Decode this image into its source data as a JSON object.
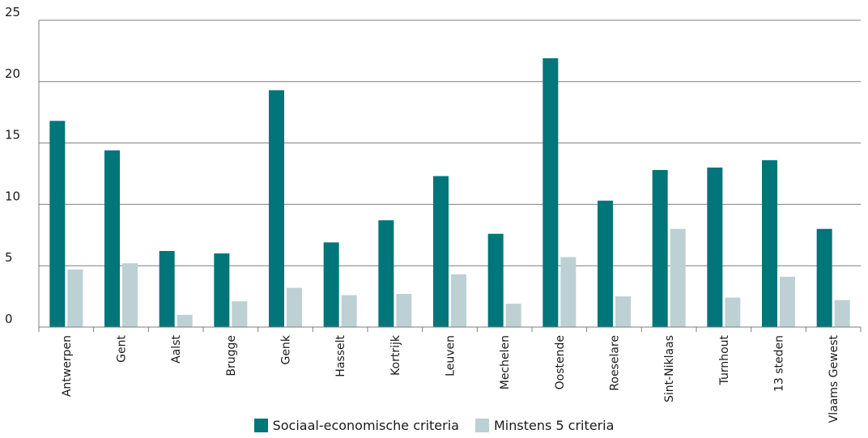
{
  "chart_data": {
    "type": "bar",
    "categories": [
      "Antwerpen",
      "Gent",
      "Aalst",
      "Brugge",
      "Genk",
      "Hasselt",
      "Kortrijk",
      "Leuven",
      "Mechelen",
      "Oostende",
      "Roeselare",
      "Sint-Niklaas",
      "Turnhout",
      "13 steden",
      "Vlaams Gewest"
    ],
    "series": [
      {
        "name": "Sociaal-economische criteria",
        "color": "#00757a",
        "values": [
          16.8,
          14.4,
          6.2,
          6.0,
          19.3,
          6.9,
          8.7,
          12.3,
          7.6,
          21.9,
          10.3,
          12.8,
          13.0,
          13.6,
          8.0
        ]
      },
      {
        "name": "Minstens 5 criteria",
        "color": "#bdd0d4",
        "values": [
          4.7,
          5.2,
          1.0,
          2.1,
          3.2,
          2.6,
          2.7,
          4.3,
          1.9,
          5.7,
          2.5,
          8.0,
          2.4,
          4.1,
          2.2
        ]
      }
    ],
    "ylim": [
      0,
      25
    ],
    "yticks": [
      0,
      5,
      10,
      15,
      20,
      25
    ],
    "grid": true,
    "legend_position": "bottom-center",
    "title": "",
    "xlabel": "",
    "ylabel": ""
  }
}
